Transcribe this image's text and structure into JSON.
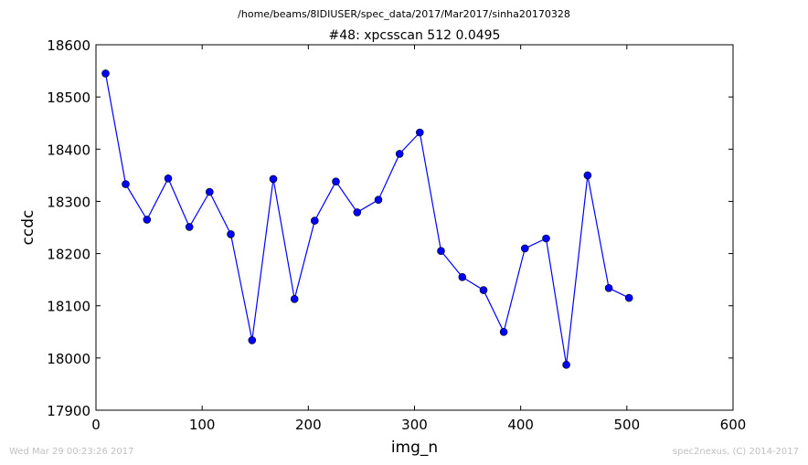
{
  "figure": {
    "suptitle": "/home/beams/8IDIUSER/spec_data/2017/Mar2017/sinha20170328",
    "footer_left": "Wed Mar 29 00:23:26 2017",
    "footer_right": "spec2nexus, (C) 2014-2017"
  },
  "chart_data": {
    "type": "line",
    "title": "#48: xpcsscan 512 0.0495",
    "xlabel": "img_n",
    "ylabel": "ccdc",
    "xlim": [
      0,
      600
    ],
    "ylim": [
      17900,
      18600
    ],
    "xticks": [
      0,
      100,
      200,
      300,
      400,
      500,
      600
    ],
    "yticks": [
      17900,
      18000,
      18100,
      18200,
      18300,
      18400,
      18500,
      18600
    ],
    "grid": false,
    "marker": "circle",
    "color": "#0000ff",
    "series": [
      {
        "x": [
          9,
          28,
          48,
          68,
          88,
          107,
          127,
          147,
          167,
          187,
          206,
          226,
          246,
          266,
          286,
          305,
          325,
          345,
          365,
          384,
          404,
          424,
          443,
          463,
          483,
          502
        ],
        "values": [
          18545,
          18333,
          18265,
          18344,
          18251,
          18318,
          18237,
          18034,
          18343,
          18113,
          18263,
          18338,
          18279,
          18303,
          18391,
          18432,
          18205,
          18155,
          18130,
          18050,
          18210,
          18229,
          17987,
          18350,
          18134,
          18115
        ]
      }
    ]
  }
}
